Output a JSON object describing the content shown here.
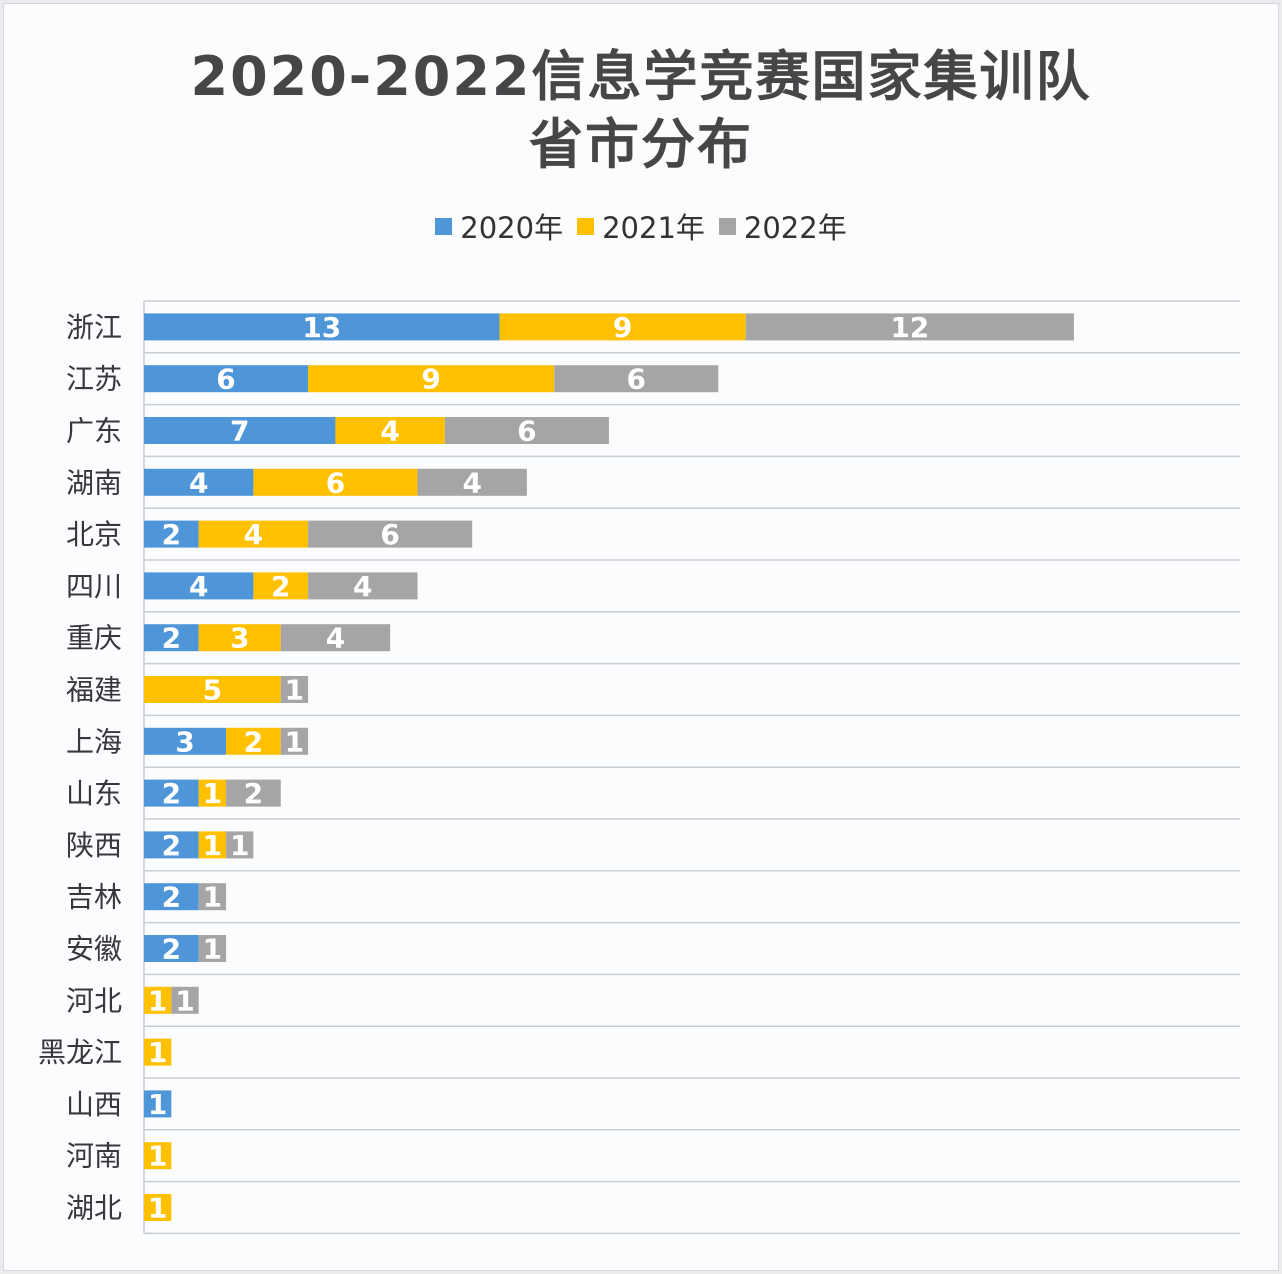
{
  "chart_data": {
    "type": "bar",
    "orientation": "horizontal",
    "stacked": true,
    "title": "2020-2022信息学竞赛国家集训队",
    "subtitle": "省市分布",
    "xlabel": "",
    "ylabel": "",
    "legend_position": "top-center",
    "grid": true,
    "xlim": [
      0,
      40
    ],
    "categories": [
      "浙江",
      "江苏",
      "广东",
      "湖南",
      "北京",
      "四川",
      "重庆",
      "福建",
      "上海",
      "山东",
      "陕西",
      "吉林",
      "安徽",
      "河北",
      "黑龙江",
      "山西",
      "河南",
      "湖北"
    ],
    "series": [
      {
        "name": "2020年",
        "color": "#4f96d9",
        "values": [
          13,
          6,
          7,
          4,
          2,
          4,
          2,
          0,
          3,
          2,
          2,
          2,
          2,
          0,
          0,
          1,
          0,
          0
        ]
      },
      {
        "name": "2021年",
        "color": "#ffc000",
        "values": [
          9,
          9,
          4,
          6,
          4,
          2,
          3,
          5,
          2,
          1,
          1,
          0,
          0,
          1,
          1,
          0,
          1,
          1
        ]
      },
      {
        "name": "2022年",
        "color": "#a5a5a7",
        "values": [
          12,
          6,
          6,
          4,
          6,
          4,
          4,
          1,
          1,
          2,
          1,
          1,
          1,
          1,
          0,
          0,
          0,
          0
        ]
      }
    ]
  }
}
